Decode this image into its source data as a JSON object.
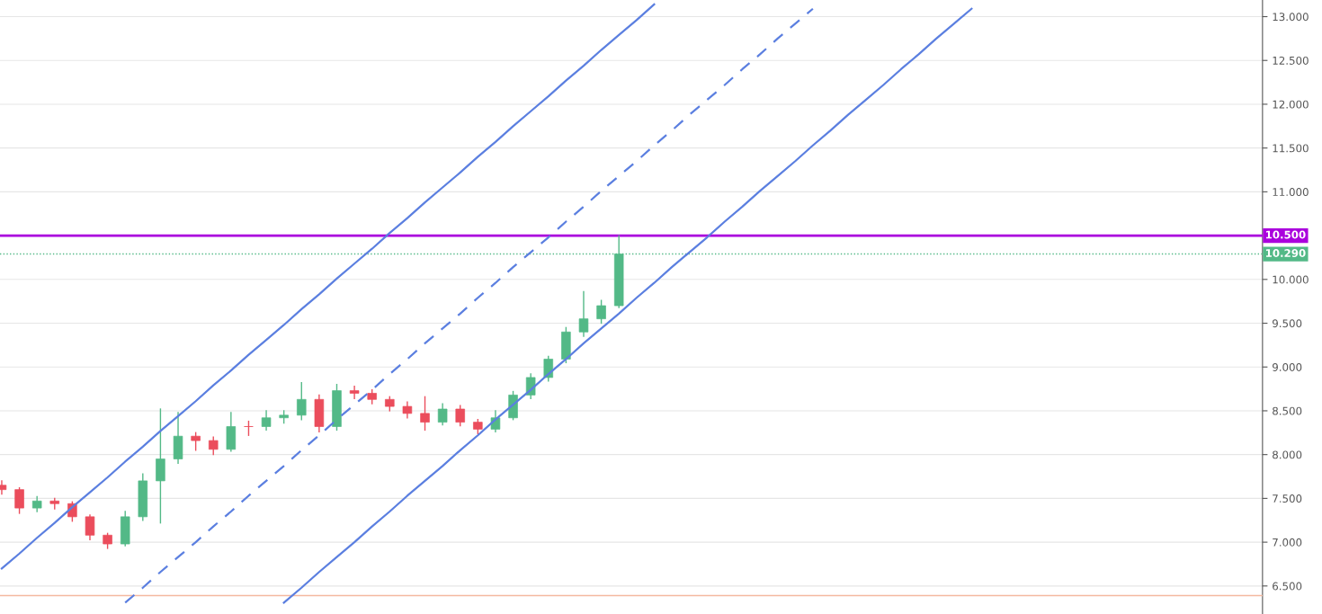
{
  "chart_data": {
    "type": "candlestick",
    "categories": [
      null,
      null,
      null,
      null,
      null,
      null,
      null,
      null,
      null,
      null,
      null,
      null,
      null,
      null,
      null,
      null,
      null,
      null,
      null,
      null,
      null,
      null,
      null,
      null,
      null,
      null,
      null,
      null,
      null,
      null,
      null,
      null,
      null,
      null,
      null,
      null,
      null,
      null,
      null,
      null,
      null,
      null,
      null,
      null,
      null,
      null,
      null,
      null,
      null,
      null,
      null,
      null,
      null,
      null,
      null,
      null,
      null,
      null,
      null,
      null,
      null,
      null,
      null,
      null,
      null,
      null,
      null,
      null,
      null,
      null,
      null,
      null
    ],
    "series": [
      {
        "ohlc": [
          [
            7.65,
            7.7,
            7.55,
            7.6
          ],
          [
            7.6,
            7.62,
            7.33,
            7.39
          ],
          [
            7.39,
            7.52,
            7.35,
            7.47
          ],
          [
            7.47,
            7.5,
            7.38,
            7.44
          ],
          [
            7.44,
            7.46,
            7.24,
            7.29
          ],
          [
            7.29,
            7.31,
            7.03,
            7.08
          ],
          [
            7.08,
            7.1,
            6.93,
            6.98
          ],
          [
            6.98,
            7.35,
            6.96,
            7.29
          ],
          [
            7.29,
            7.78,
            7.25,
            7.7
          ],
          [
            7.7,
            8.52,
            7.22,
            7.95
          ],
          [
            7.95,
            8.48,
            7.9,
            8.21
          ],
          [
            8.21,
            8.25,
            8.05,
            8.16
          ],
          [
            8.16,
            8.2,
            8.0,
            8.06
          ],
          [
            8.06,
            8.48,
            8.04,
            8.32
          ],
          [
            8.32,
            8.38,
            8.22,
            8.32
          ],
          [
            8.32,
            8.5,
            8.28,
            8.42
          ],
          [
            8.42,
            8.5,
            8.36,
            8.45
          ],
          [
            8.45,
            8.82,
            8.4,
            8.63
          ],
          [
            8.63,
            8.68,
            8.26,
            8.32
          ],
          [
            8.32,
            8.8,
            8.28,
            8.73
          ],
          [
            8.73,
            8.78,
            8.64,
            8.7
          ],
          [
            8.7,
            8.74,
            8.58,
            8.63
          ],
          [
            8.63,
            8.66,
            8.5,
            8.55
          ],
          [
            8.55,
            8.6,
            8.42,
            8.47
          ],
          [
            8.47,
            8.66,
            8.28,
            8.37
          ],
          [
            8.37,
            8.58,
            8.34,
            8.52
          ],
          [
            8.52,
            8.56,
            8.33,
            8.37
          ],
          [
            8.37,
            8.4,
            8.24,
            8.29
          ],
          [
            8.29,
            8.5,
            8.26,
            8.42
          ],
          [
            8.42,
            8.72,
            8.4,
            8.68
          ],
          [
            8.68,
            8.92,
            8.64,
            8.88
          ],
          [
            8.88,
            9.12,
            8.84,
            9.09
          ],
          [
            9.09,
            9.45,
            9.05,
            9.4
          ],
          [
            9.4,
            9.86,
            9.35,
            9.55
          ],
          [
            9.55,
            9.76,
            9.5,
            9.7
          ],
          [
            9.7,
            10.5,
            9.68,
            10.29
          ],
          null,
          null,
          null,
          null,
          null,
          null,
          null,
          null,
          null,
          null,
          null,
          null,
          null,
          null,
          null,
          null,
          null,
          null,
          null,
          null,
          null,
          null,
          null,
          null,
          null,
          null,
          null,
          null,
          null,
          null,
          null,
          null,
          null,
          null,
          null,
          null
        ],
        "colors": [
          "#eb4d5c",
          "#eb4d5c",
          "#53b987",
          "#eb4d5c",
          "#eb4d5c",
          "#eb4d5c",
          "#eb4d5c",
          "#53b987",
          "#53b987",
          "#53b987",
          "#53b987",
          "#eb4d5c",
          "#eb4d5c",
          "#53b987",
          "#eb4d5c",
          "#53b987",
          "#53b987",
          "#53b987",
          "#eb4d5c",
          "#53b987",
          "#eb4d5c",
          "#eb4d5c",
          "#eb4d5c",
          "#eb4d5c",
          "#eb4d5c",
          "#53b987",
          "#eb4d5c",
          "#eb4d5c",
          "#53b987",
          "#53b987",
          "#53b987",
          "#53b987",
          "#53b987",
          "#53b987",
          "#53b987",
          "#53b987",
          null,
          null,
          null,
          null,
          null,
          null,
          null,
          null,
          null,
          null,
          null,
          null,
          null,
          null,
          null,
          null,
          null,
          null,
          null,
          null,
          null,
          null,
          null,
          null,
          null,
          null,
          null,
          null,
          null,
          null,
          null,
          null,
          null,
          null,
          null,
          null
        ]
      },
      {
        "type": "line",
        "color": "#5b7fe0",
        "line_style": "solid",
        "values": [
          6.7,
          6.87,
          7.05,
          7.22,
          7.4,
          7.57,
          7.74,
          7.92,
          8.09,
          8.27,
          8.44,
          8.61,
          8.79,
          8.96,
          9.14,
          9.31,
          9.48,
          9.66,
          9.83,
          10.01,
          10.18,
          10.35,
          10.53,
          10.7,
          10.88,
          11.05,
          11.22,
          11.4,
          11.57,
          11.75,
          11.92,
          12.09,
          12.27,
          12.44,
          12.62,
          12.79,
          12.96,
          13.14,
          null,
          null,
          null,
          null,
          null,
          null,
          null,
          null,
          null,
          null,
          null,
          null,
          null,
          null,
          null,
          null,
          null,
          null,
          null,
          null,
          null,
          null,
          null,
          null,
          null,
          null,
          null,
          null,
          null,
          null,
          null,
          null,
          null,
          null
        ]
      },
      {
        "type": "line",
        "color": "#5b7fe0",
        "line_style": "dashed",
        "values": [
          null,
          null,
          null,
          null,
          null,
          null,
          null,
          6.31,
          6.48,
          6.66,
          6.83,
          7.0,
          7.18,
          7.35,
          7.53,
          7.7,
          7.87,
          8.05,
          8.22,
          8.4,
          8.57,
          8.74,
          8.92,
          9.09,
          9.27,
          9.44,
          9.61,
          9.79,
          9.96,
          10.14,
          10.31,
          10.48,
          10.66,
          10.83,
          11.01,
          11.18,
          11.35,
          11.53,
          11.7,
          11.88,
          12.05,
          12.22,
          12.4,
          12.57,
          12.75,
          12.92,
          13.09,
          null,
          null,
          null,
          null,
          null,
          null,
          null,
          null,
          null,
          null,
          null,
          null,
          null,
          null,
          null,
          null,
          null,
          null,
          null,
          null,
          null,
          null,
          null,
          null,
          null
        ]
      },
      {
        "type": "line",
        "color": "#5b7fe0",
        "line_style": "solid",
        "values": [
          null,
          null,
          null,
          null,
          null,
          null,
          null,
          null,
          null,
          null,
          null,
          null,
          null,
          null,
          null,
          null,
          6.31,
          6.48,
          6.66,
          6.83,
          7.0,
          7.18,
          7.35,
          7.53,
          7.7,
          7.87,
          8.05,
          8.22,
          8.4,
          8.57,
          8.74,
          8.92,
          9.09,
          9.27,
          9.44,
          9.61,
          9.79,
          9.96,
          10.14,
          10.31,
          10.48,
          10.66,
          10.83,
          11.01,
          11.18,
          11.35,
          11.53,
          11.7,
          11.88,
          12.05,
          12.22,
          12.4,
          12.57,
          12.75,
          12.92,
          13.09,
          null,
          null,
          null,
          null,
          null,
          null,
          null,
          null,
          null,
          null,
          null,
          null,
          null,
          null,
          null,
          null
        ]
      }
    ],
    "ylim": [
      6.18,
      13.19
    ],
    "yticks": [
      {
        "value": 6.5,
        "label": "6.500"
      },
      {
        "value": 7,
        "label": "7.000"
      },
      {
        "value": 7.5,
        "label": "7.500"
      },
      {
        "value": 8,
        "label": "8.000"
      },
      {
        "value": 8.5,
        "label": "8.500"
      },
      {
        "value": 9,
        "label": "9.000"
      },
      {
        "value": 9.5,
        "label": "9.500"
      },
      {
        "value": 10,
        "label": "10.000"
      },
      {
        "value": 11,
        "label": "11.000"
      },
      {
        "value": 11.5,
        "label": "11.500"
      },
      {
        "value": 12,
        "label": "12.000"
      },
      {
        "value": 12.5,
        "label": "12.500"
      },
      {
        "value": 13,
        "label": "13.000"
      }
    ],
    "ref_lines": [
      {
        "axis": "y",
        "value": 10.5,
        "label": "10.500",
        "color": "#aa00dd",
        "line_style": "solid"
      },
      {
        "axis": "y",
        "value": 10.29,
        "label": "10.290",
        "color": "#53b987",
        "line_style": "dotted"
      },
      {
        "axis": "y",
        "value": 6.39,
        "color": "#f4b9a0",
        "line_style": "solid"
      }
    ],
    "tick_labels": "y",
    "grid": "y"
  }
}
